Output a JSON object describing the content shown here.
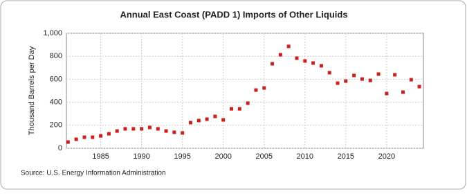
{
  "chart_data": {
    "type": "scatter",
    "title": "Annual East Coast (PADD 1) Imports of Other Liquids",
    "y_label": "Thousand Barrels per Day",
    "source": "Source: U.S. Energy Information Administration",
    "color": "#cc1f1f",
    "x": [
      1981,
      1982,
      1983,
      1984,
      1985,
      1986,
      1987,
      1988,
      1989,
      1990,
      1991,
      1992,
      1993,
      1994,
      1995,
      1996,
      1997,
      1998,
      1999,
      2000,
      2001,
      2002,
      2003,
      2004,
      2005,
      2006,
      2007,
      2008,
      2009,
      2010,
      2011,
      2012,
      2013,
      2014,
      2015,
      2016,
      2017,
      2018,
      2019,
      2020,
      2021,
      2022,
      2023,
      2024
    ],
    "values": [
      54,
      78,
      96,
      96,
      108,
      126,
      150,
      169,
      169,
      169,
      181,
      169,
      150,
      139,
      133,
      223,
      241,
      253,
      277,
      247,
      343,
      343,
      392,
      506,
      524,
      735,
      813,
      886,
      783,
      759,
      741,
      717,
      657,
      566,
      584,
      633,
      602,
      590,
      645,
      476,
      639,
      488,
      596,
      536
    ],
    "xlim": [
      1980.8,
      2024.5
    ],
    "xticks": [
      1985,
      1990,
      1995,
      2000,
      2005,
      2010,
      2015,
      2020
    ],
    "ylim": [
      0,
      1000
    ],
    "yticks": [
      0,
      200,
      400,
      600,
      800,
      {
        "value": 1000,
        "label": "1,000"
      }
    ],
    "grid": true
  }
}
